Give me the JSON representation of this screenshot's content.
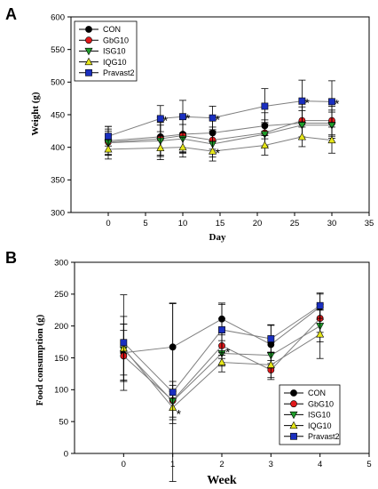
{
  "colors": {
    "CON": "#000000",
    "GbG10": "#e0191b",
    "ISG10": "#1f9d2b",
    "IQG10": "#e6e61a",
    "Pravast2": "#1a2fbf",
    "line": "#7f7f7f"
  },
  "chart_data": [
    {
      "type": "line",
      "panel_label": "A",
      "xlabel": "Day",
      "ylabel": "Weight (g)",
      "xlim": [
        -5,
        35
      ],
      "ylim": [
        300,
        600
      ],
      "xticks": [
        0,
        5,
        10,
        15,
        20,
        25,
        30,
        35
      ],
      "yticks": [
        300,
        350,
        400,
        450,
        500,
        550,
        600
      ],
      "x": [
        0,
        7,
        10,
        14,
        21,
        26,
        30
      ],
      "legend_position": "top-left",
      "series": [
        {
          "name": "CON",
          "marker": "circle",
          "values": [
            410,
            416,
            420,
            422,
            433,
            437,
            437
          ],
          "errors": [
            22,
            30,
            28,
            25,
            20,
            25,
            20
          ]
        },
        {
          "name": "GbG10",
          "marker": "circle",
          "values": [
            408,
            413,
            418,
            411,
            422,
            441,
            441
          ],
          "errors": [
            20,
            25,
            25,
            20,
            20,
            25,
            22
          ]
        },
        {
          "name": "ISG10",
          "marker": "triangle-down",
          "values": [
            407,
            410,
            413,
            405,
            420,
            434,
            434
          ],
          "errors": [
            18,
            24,
            22,
            20,
            18,
            22,
            20
          ]
        },
        {
          "name": "IQG10",
          "marker": "triangle-up",
          "values": [
            397,
            399,
            400,
            394,
            403,
            416,
            411
          ],
          "errors": [
            15,
            18,
            15,
            15,
            15,
            15,
            20
          ]
        },
        {
          "name": "Pravast2",
          "marker": "square",
          "values": [
            417,
            444,
            447,
            445,
            463,
            471,
            470
          ],
          "errors": [
            15,
            20,
            25,
            18,
            27,
            32,
            32
          ]
        }
      ],
      "annotations": [
        {
          "text": "*",
          "series": "Pravast2",
          "x": 7
        },
        {
          "text": "*",
          "series": "Pravast2",
          "x": 10
        },
        {
          "text": "*",
          "series": "Pravast2",
          "x": 14
        },
        {
          "text": "*",
          "series": "IQG10",
          "x": 14
        },
        {
          "text": "*",
          "series": "Pravast2",
          "x": 26
        },
        {
          "text": "*",
          "series": "Pravast2",
          "x": 30
        }
      ]
    },
    {
      "type": "line",
      "panel_label": "B",
      "xlabel": "Week",
      "ylabel": "Food consumption (g)",
      "xlim": [
        -1,
        5
      ],
      "ylim": [
        0,
        300
      ],
      "xticks": [
        0,
        1,
        2,
        3,
        4,
        5
      ],
      "yticks": [
        0,
        50,
        100,
        150,
        200,
        250,
        300
      ],
      "x": [
        0,
        1,
        2,
        3,
        4
      ],
      "legend_position": "bottom-right",
      "series": [
        {
          "name": "CON",
          "marker": "circle",
          "values": [
            158,
            167,
            211,
            171,
            230
          ],
          "errors": [
            45,
            68,
            25,
            30,
            20
          ]
        },
        {
          "name": "GbG10",
          "marker": "circle",
          "values": [
            153,
            83,
            169,
            131,
            212
          ],
          "errors": [
            40,
            30,
            20,
            15,
            22
          ]
        },
        {
          "name": "ISG10",
          "marker": "triangle-down",
          "values": [
            163,
            82,
            157,
            154,
            200
          ],
          "errors": [
            40,
            25,
            20,
            20,
            25
          ]
        },
        {
          "name": "IQG10",
          "marker": "triangle-up",
          "values": [
            165,
            72,
            143,
            139,
            187
          ],
          "errors": [
            50,
            25,
            15,
            20,
            38
          ]
        },
        {
          "name": "Pravast2",
          "marker": "square",
          "values": [
            174,
            96,
            194,
            180,
            232
          ],
          "errors": [
            75,
            140,
            40,
            22,
            20
          ]
        }
      ],
      "annotations": [
        {
          "text": "*",
          "series": "IQG10",
          "x": 1
        },
        {
          "text": "*",
          "series": "GbG10",
          "x": 2
        }
      ]
    }
  ]
}
